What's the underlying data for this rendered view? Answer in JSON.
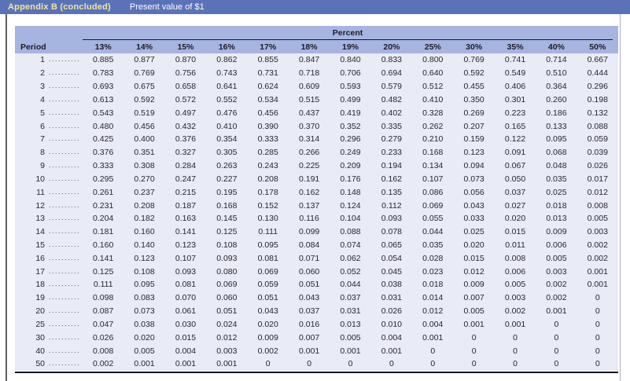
{
  "title_bar": {
    "appendix_label": "Appendix B (concluded)",
    "subtitle": "Present value of $1"
  },
  "table": {
    "group_header": "Percent",
    "period_header": "Period",
    "dot_leader": "................................................................",
    "columns": [
      "13%",
      "14%",
      "15%",
      "16%",
      "17%",
      "18%",
      "19%",
      "20%",
      "25%",
      "30%",
      "35%",
      "40%",
      "50%"
    ],
    "rows": [
      {
        "period": "1",
        "values": [
          "0.885",
          "0.877",
          "0.870",
          "0.862",
          "0.855",
          "0.847",
          "0.840",
          "0.833",
          "0.800",
          "0.769",
          "0.741",
          "0.714",
          "0.667"
        ]
      },
      {
        "period": "2",
        "values": [
          "0.783",
          "0.769",
          "0.756",
          "0.743",
          "0.731",
          "0.718",
          "0.706",
          "0.694",
          "0.640",
          "0.592",
          "0.549",
          "0.510",
          "0.444"
        ]
      },
      {
        "period": "3",
        "values": [
          "0.693",
          "0.675",
          "0.658",
          "0.641",
          "0.624",
          "0.609",
          "0.593",
          "0.579",
          "0.512",
          "0.455",
          "0.406",
          "0.364",
          "0.296"
        ]
      },
      {
        "period": "4",
        "values": [
          "0.613",
          "0.592",
          "0.572",
          "0.552",
          "0.534",
          "0.515",
          "0.499",
          "0.482",
          "0.410",
          "0.350",
          "0.301",
          "0.260",
          "0.198"
        ]
      },
      {
        "period": "5",
        "values": [
          "0.543",
          "0.519",
          "0.497",
          "0.476",
          "0.456",
          "0.437",
          "0.419",
          "0.402",
          "0.328",
          "0.269",
          "0.223",
          "0.186",
          "0.132"
        ]
      },
      {
        "period": "6",
        "values": [
          "0.480",
          "0.456",
          "0.432",
          "0.410",
          "0.390",
          "0.370",
          "0.352",
          "0.335",
          "0.262",
          "0.207",
          "0.165",
          "0.133",
          "0.088"
        ]
      },
      {
        "period": "7",
        "values": [
          "0.425",
          "0.400",
          "0.376",
          "0.354",
          "0.333",
          "0.314",
          "0.296",
          "0.279",
          "0.210",
          "0.159",
          "0.122",
          "0.095",
          "0.059"
        ]
      },
      {
        "period": "8",
        "values": [
          "0.376",
          "0.351",
          "0.327",
          "0.305",
          "0.285",
          "0.266",
          "0.249",
          "0.233",
          "0.168",
          "0.123",
          "0.091",
          "0.068",
          "0.039"
        ]
      },
      {
        "period": "9",
        "values": [
          "0.333",
          "0.308",
          "0.284",
          "0.263",
          "0.243",
          "0.225",
          "0.209",
          "0.194",
          "0.134",
          "0.094",
          "0.067",
          "0.048",
          "0.026"
        ]
      },
      {
        "period": "10",
        "values": [
          "0.295",
          "0.270",
          "0.247",
          "0.227",
          "0.208",
          "0.191",
          "0.176",
          "0.162",
          "0.107",
          "0.073",
          "0.050",
          "0.035",
          "0.017"
        ]
      },
      {
        "period": "11",
        "values": [
          "0.261",
          "0.237",
          "0.215",
          "0.195",
          "0.178",
          "0.162",
          "0.148",
          "0.135",
          "0.086",
          "0.056",
          "0.037",
          "0.025",
          "0.012"
        ]
      },
      {
        "period": "12",
        "values": [
          "0.231",
          "0.208",
          "0.187",
          "0.168",
          "0.152",
          "0.137",
          "0.124",
          "0.112",
          "0.069",
          "0.043",
          "0.027",
          "0.018",
          "0.008"
        ]
      },
      {
        "period": "13",
        "values": [
          "0.204",
          "0.182",
          "0.163",
          "0.145",
          "0.130",
          "0.116",
          "0.104",
          "0.093",
          "0.055",
          "0.033",
          "0.020",
          "0.013",
          "0.005"
        ]
      },
      {
        "period": "14",
        "values": [
          "0.181",
          "0.160",
          "0.141",
          "0.125",
          "0.111",
          "0.099",
          "0.088",
          "0.078",
          "0.044",
          "0.025",
          "0.015",
          "0.009",
          "0.003"
        ]
      },
      {
        "period": "15",
        "values": [
          "0.160",
          "0.140",
          "0.123",
          "0.108",
          "0.095",
          "0.084",
          "0.074",
          "0.065",
          "0.035",
          "0.020",
          "0.011",
          "0.006",
          "0.002"
        ]
      },
      {
        "period": "16",
        "values": [
          "0.141",
          "0.123",
          "0.107",
          "0.093",
          "0.081",
          "0.071",
          "0.062",
          "0.054",
          "0.028",
          "0.015",
          "0.008",
          "0.005",
          "0.002"
        ]
      },
      {
        "period": "17",
        "values": [
          "0.125",
          "0.108",
          "0.093",
          "0.080",
          "0.069",
          "0.060",
          "0.052",
          "0.045",
          "0.023",
          "0.012",
          "0.006",
          "0.003",
          "0.001"
        ]
      },
      {
        "period": "18",
        "values": [
          "0.111",
          "0.095",
          "0.081",
          "0.069",
          "0.059",
          "0.051",
          "0.044",
          "0.038",
          "0.018",
          "0.009",
          "0.005",
          "0.002",
          "0.001"
        ]
      },
      {
        "period": "19",
        "values": [
          "0.098",
          "0.083",
          "0.070",
          "0.060",
          "0.051",
          "0.043",
          "0.037",
          "0.031",
          "0.014",
          "0.007",
          "0.003",
          "0.002",
          "0"
        ]
      },
      {
        "period": "20",
        "values": [
          "0.087",
          "0.073",
          "0.061",
          "0.051",
          "0.043",
          "0.037",
          "0.031",
          "0.026",
          "0.012",
          "0.005",
          "0.002",
          "0.001",
          "0"
        ]
      },
      {
        "period": "25",
        "values": [
          "0.047",
          "0.038",
          "0.030",
          "0.024",
          "0.020",
          "0.016",
          "0.013",
          "0.010",
          "0.004",
          "0.001",
          "0.001",
          "0",
          "0"
        ]
      },
      {
        "period": "30",
        "values": [
          "0.026",
          "0.020",
          "0.015",
          "0.012",
          "0.009",
          "0.007",
          "0.005",
          "0.004",
          "0.001",
          "0",
          "0",
          "0",
          "0"
        ]
      },
      {
        "period": "40",
        "values": [
          "0.008",
          "0.005",
          "0.004",
          "0.003",
          "0.002",
          "0.001",
          "0.001",
          "0.001",
          "0",
          "0",
          "0",
          "0",
          "0"
        ]
      },
      {
        "period": "50",
        "values": [
          "0.002",
          "0.001",
          "0.001",
          "0.001",
          "0",
          "0",
          "0",
          "0",
          "0",
          "0",
          "0",
          "0",
          "0"
        ]
      }
    ]
  },
  "colors": {
    "title_bar_bg": "#5a73b8",
    "appendix_label": "#f0e69e",
    "subtitle_text": "#ffffff",
    "header_band_bg": "#a6b5e0",
    "body_bg": "#e9ebf6",
    "text": "#26262e",
    "rule": "#16161e"
  }
}
